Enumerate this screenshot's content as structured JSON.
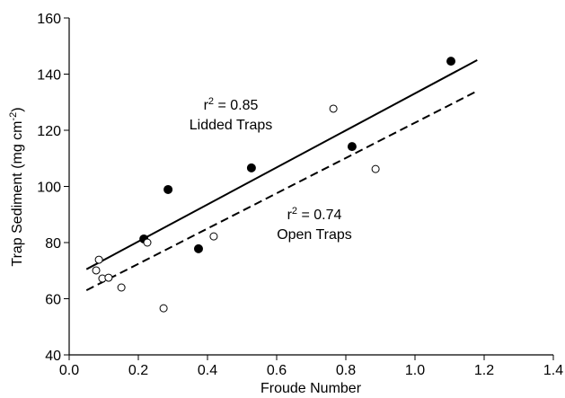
{
  "chart_data": {
    "type": "scatter",
    "xlabel": "Froude Number",
    "ylabel": {
      "text": "Trap Sediment (mg cm",
      "exponent": "-2",
      "close": ")"
    },
    "xlim": [
      0,
      1.4
    ],
    "ylim": [
      40,
      160
    ],
    "xticks": [
      {
        "value": 0,
        "label": "0.0"
      },
      0.2,
      0.4,
      0.6,
      0.8,
      {
        "value": 1,
        "label": "1.0"
      },
      1.2,
      1.4
    ],
    "yticks": [
      40,
      60,
      80,
      100,
      120,
      140,
      160
    ],
    "series": [
      {
        "color": "#000000",
        "marker": "filled",
        "x": [
          0.216,
          0.286,
          0.374,
          0.527,
          0.818,
          1.104
        ],
        "values": [
          81.3,
          98.9,
          77.8,
          106.6,
          114.2,
          144.6
        ]
      },
      {
        "color": "#000000",
        "marker": "open",
        "x": [
          0.078,
          0.086,
          0.096,
          0.114,
          0.151,
          0.226,
          0.273,
          0.418,
          0.764,
          0.886
        ],
        "values": [
          70.1,
          73.9,
          67.2,
          67.5,
          64,
          80,
          56.6,
          82.2,
          127.7,
          106.2
        ]
      }
    ],
    "fit_lines": [
      {
        "color": "#000000",
        "dashed": false,
        "x": [
          0.05,
          1.18
        ],
        "values": [
          70.5,
          145
        ]
      },
      {
        "color": "#000000",
        "dashed": true,
        "x": [
          0.05,
          1.18
        ],
        "values": [
          63,
          134
        ]
      }
    ],
    "annotations": [
      {
        "symbol": "r",
        "exponent": "2",
        "text": " = 0.85",
        "label": "Lidded Traps"
      },
      {
        "symbol": "r",
        "exponent": "2",
        "text": " = 0.74",
        "label": "Open Traps"
      }
    ]
  }
}
